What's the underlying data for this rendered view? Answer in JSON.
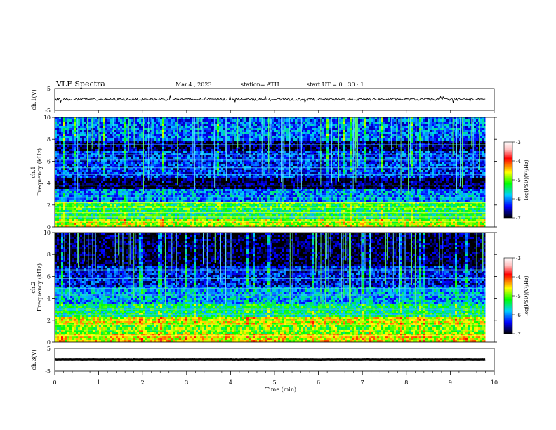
{
  "header": {
    "title": "VLF  Spectra",
    "date": "Mar.4  , 2023",
    "station": "station= ATH",
    "start": "start  UT  =   0  : 30 : 1"
  },
  "panels": {
    "ch1v": {
      "ylabel": "ch.1(V)",
      "ticks": [
        "5",
        "-5"
      ]
    },
    "spec1": {
      "ylabel_top": "ch.1",
      "ylabel": "Frequency  (kHz)",
      "ticks": [
        "10",
        "8",
        "6",
        "4",
        "2",
        "0"
      ]
    },
    "spec2": {
      "ylabel_top": "ch.2",
      "ylabel": "Frequency  (kHz)",
      "ticks": [
        "10",
        "8",
        "6",
        "4",
        "2",
        "0"
      ]
    },
    "ch3v": {
      "ylabel": "ch.3(V)",
      "ticks": [
        "5",
        "-5"
      ]
    }
  },
  "colorbar": {
    "label": "log(PSD)(V²/Hz)",
    "ticks": [
      "-3",
      "-4",
      "-5",
      "-6",
      "-7"
    ],
    "colors": [
      "#ffffff",
      "#ff0000",
      "#ffff00",
      "#00ff00",
      "#00c0ff",
      "#0000ff",
      "#000000"
    ]
  },
  "xaxis": {
    "label": "Time  (min)",
    "ticks": [
      "0",
      "1",
      "2",
      "3",
      "4",
      "5",
      "6",
      "7",
      "8",
      "9",
      "10"
    ]
  },
  "chart_data": {
    "type": "heatmap",
    "title": "VLF  Spectra",
    "xlabel": "Time  (min)",
    "xlim": [
      0,
      10
    ],
    "data_end_min": 9.8,
    "waveforms": {
      "ch1": {
        "ylim": [
          -5,
          5
        ],
        "mean": 0,
        "noise_amplitude": 0.5
      },
      "ch3": {
        "ylim": [
          -5,
          5
        ],
        "mean": 0,
        "noise_amplitude": 0.05
      }
    },
    "spectrograms": [
      {
        "channel": "ch.1",
        "ylim_khz": [
          0,
          10
        ],
        "clim_log_psd": [
          -7,
          -3
        ],
        "bands": [
          {
            "from_khz": 0.0,
            "to_khz": 0.8,
            "log_psd": -4.8
          },
          {
            "from_khz": 0.8,
            "to_khz": 1.6,
            "log_psd": -5.4
          },
          {
            "from_khz": 1.6,
            "to_khz": 2.4,
            "log_psd": -5.2
          },
          {
            "from_khz": 2.4,
            "to_khz": 3.6,
            "log_psd": -6.0
          },
          {
            "from_khz": 3.6,
            "to_khz": 4.6,
            "log_psd": -6.9
          },
          {
            "from_khz": 4.6,
            "to_khz": 7.0,
            "log_psd": -6.3
          },
          {
            "from_khz": 7.0,
            "to_khz": 8.0,
            "log_psd": -6.8
          },
          {
            "from_khz": 8.0,
            "to_khz": 10.0,
            "log_psd": -6.1
          }
        ],
        "tones_khz": [
          0.5,
          0.9,
          1.3,
          1.8,
          2.2,
          2.7,
          3.1,
          3.8,
          4.8,
          5.4,
          6.1,
          6.6,
          7.5
        ]
      },
      {
        "channel": "ch.2",
        "ylim_khz": [
          0,
          10
        ],
        "clim_log_psd": [
          -7,
          -3
        ],
        "bands": [
          {
            "from_khz": 0.0,
            "to_khz": 0.8,
            "log_psd": -4.6
          },
          {
            "from_khz": 0.8,
            "to_khz": 1.6,
            "log_psd": -5.0
          },
          {
            "from_khz": 1.6,
            "to_khz": 2.4,
            "log_psd": -4.7
          },
          {
            "from_khz": 2.4,
            "to_khz": 3.6,
            "log_psd": -5.4
          },
          {
            "from_khz": 3.6,
            "to_khz": 5.0,
            "log_psd": -5.9
          },
          {
            "from_khz": 5.0,
            "to_khz": 7.0,
            "log_psd": -6.4
          },
          {
            "from_khz": 7.0,
            "to_khz": 10.0,
            "log_psd": -6.9
          }
        ],
        "tones_khz": [
          0.6,
          1.1,
          1.6,
          2.0,
          2.5,
          3.0,
          3.5,
          4.3,
          4.9,
          5.8,
          6.6
        ]
      }
    ]
  }
}
